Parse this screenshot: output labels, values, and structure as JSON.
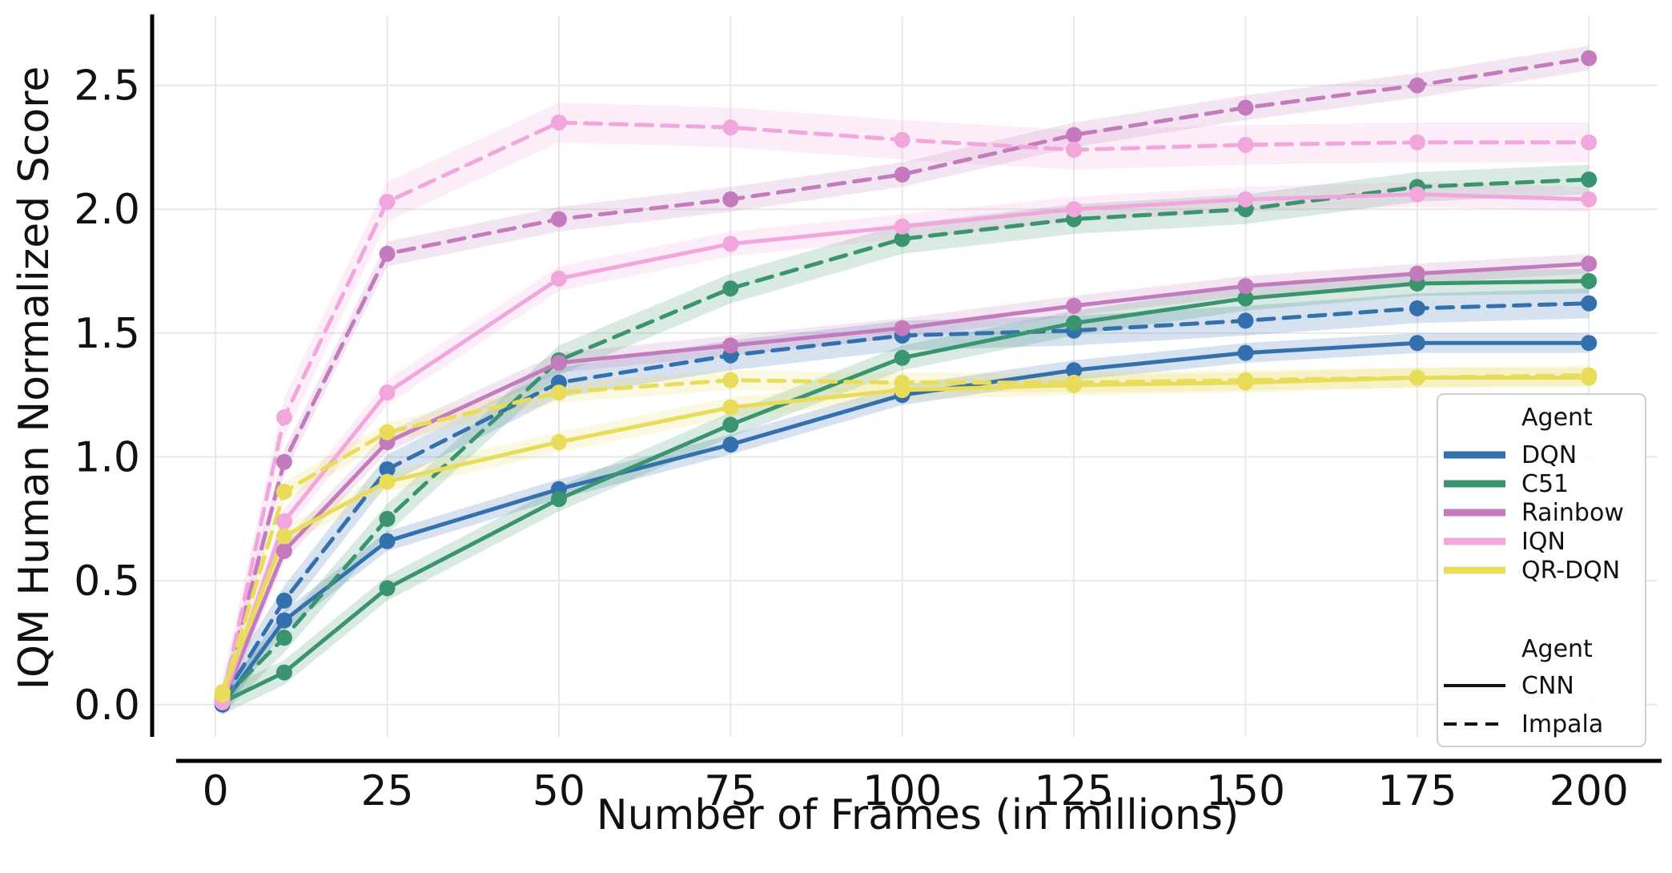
{
  "chart_data": {
    "type": "line",
    "title": "",
    "xlabel": "Number of Frames (in millions)",
    "ylabel": "IQM Human Normalized Score",
    "xlim": [
      -9,
      210
    ],
    "ylim": [
      -0.13,
      2.78
    ],
    "xticks": [
      0,
      25,
      50,
      75,
      100,
      125,
      150,
      175,
      200
    ],
    "yticks": [
      0.0,
      0.5,
      1.0,
      1.5,
      2.0,
      2.5
    ],
    "ytick_labels": [
      "0.0",
      "0.5",
      "1.0",
      "1.5",
      "2.0",
      "2.5"
    ],
    "grid": true,
    "legend_placement": "bottom-right",
    "x": [
      1,
      10,
      25,
      50,
      75,
      100,
      125,
      150,
      175,
      200
    ],
    "legend": {
      "agent_title": "Agent",
      "style_title": "Agent",
      "agents": [
        {
          "name": "DQN",
          "color": "#3470ad"
        },
        {
          "name": "C51",
          "color": "#3b9470"
        },
        {
          "name": "Rainbow",
          "color": "#c47bbd"
        },
        {
          "name": "IQN",
          "color": "#f1a6dc"
        },
        {
          "name": "QR-DQN",
          "color": "#e8dc5a"
        }
      ],
      "styles": [
        {
          "name": "CNN",
          "dash": "solid"
        },
        {
          "name": "Impala",
          "dash": "dashed"
        }
      ]
    },
    "series": [
      {
        "agent": "DQN",
        "style": "CNN",
        "values": [
          0.0,
          0.34,
          0.66,
          0.87,
          1.05,
          1.25,
          1.35,
          1.42,
          1.46,
          1.46
        ],
        "band": 0.04
      },
      {
        "agent": "DQN",
        "style": "Impala",
        "values": [
          0.02,
          0.42,
          0.95,
          1.3,
          1.41,
          1.49,
          1.51,
          1.55,
          1.6,
          1.62
        ],
        "band": 0.06
      },
      {
        "agent": "C51",
        "style": "CNN",
        "values": [
          0.01,
          0.13,
          0.47,
          0.83,
          1.13,
          1.4,
          1.54,
          1.64,
          1.7,
          1.71
        ],
        "band": 0.05
      },
      {
        "agent": "C51",
        "style": "Impala",
        "values": [
          0.02,
          0.27,
          0.75,
          1.39,
          1.68,
          1.88,
          1.96,
          2.0,
          2.09,
          2.12
        ],
        "band": 0.06
      },
      {
        "agent": "Rainbow",
        "style": "CNN",
        "values": [
          0.01,
          0.62,
          1.06,
          1.38,
          1.45,
          1.52,
          1.61,
          1.69,
          1.74,
          1.78
        ],
        "band": 0.04
      },
      {
        "agent": "Rainbow",
        "style": "Impala",
        "values": [
          0.03,
          0.98,
          1.82,
          1.96,
          2.04,
          2.14,
          2.3,
          2.41,
          2.5,
          2.61
        ],
        "band": 0.05
      },
      {
        "agent": "IQN",
        "style": "CNN",
        "values": [
          0.01,
          0.74,
          1.26,
          1.72,
          1.86,
          1.93,
          2.0,
          2.04,
          2.06,
          2.04
        ],
        "band": 0.05
      },
      {
        "agent": "IQN",
        "style": "Impala",
        "values": [
          0.02,
          1.16,
          2.03,
          2.35,
          2.33,
          2.28,
          2.24,
          2.26,
          2.27,
          2.27
        ],
        "band": 0.08
      },
      {
        "agent": "QR-DQN",
        "style": "CNN",
        "values": [
          0.05,
          0.68,
          0.9,
          1.06,
          1.2,
          1.27,
          1.29,
          1.3,
          1.32,
          1.32
        ],
        "band": 0.04
      },
      {
        "agent": "QR-DQN",
        "style": "Impala",
        "values": [
          0.04,
          0.86,
          1.1,
          1.26,
          1.31,
          1.3,
          1.3,
          1.31,
          1.32,
          1.33
        ],
        "band": 0.04
      }
    ]
  }
}
